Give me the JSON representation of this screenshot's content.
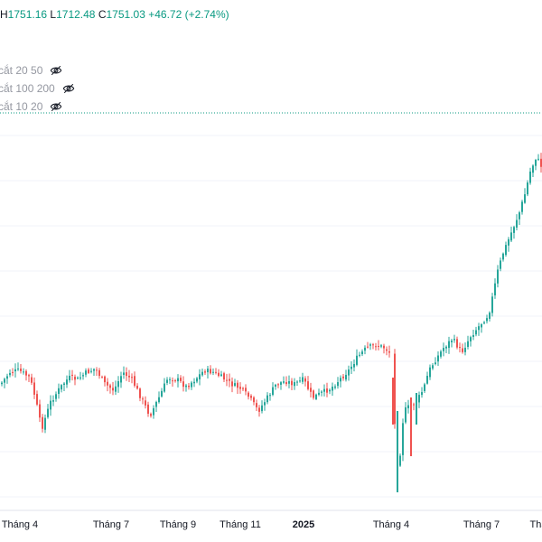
{
  "ohlc": {
    "h_label": "H",
    "h_value": "1751.16",
    "l_label": "L",
    "l_value": "1712.48",
    "c_label": "C",
    "c_value": "1751.03",
    "change": "+46.72 (+2.74%)"
  },
  "indicators": [
    {
      "label": "cắt 20 50",
      "icon": "eye-off-icon"
    },
    {
      "label": "cắt 100 200",
      "icon": "eye-off-icon"
    },
    {
      "label": "cắt 10 20",
      "icon": "eye-off-icon"
    }
  ],
  "colors": {
    "up": "#26a69a",
    "down": "#ef5350",
    "price_line": "#089981",
    "grid": "#f0f3fa"
  },
  "chart_data": {
    "type": "candlestick",
    "x_ticks": [
      "Tháng 4",
      "Tháng 7",
      "Tháng 9",
      "Tháng 11",
      "2025",
      "Tháng 4",
      "Tháng 7",
      "Thá"
    ],
    "bold_ticks": [
      "2025"
    ],
    "grid": true
  }
}
